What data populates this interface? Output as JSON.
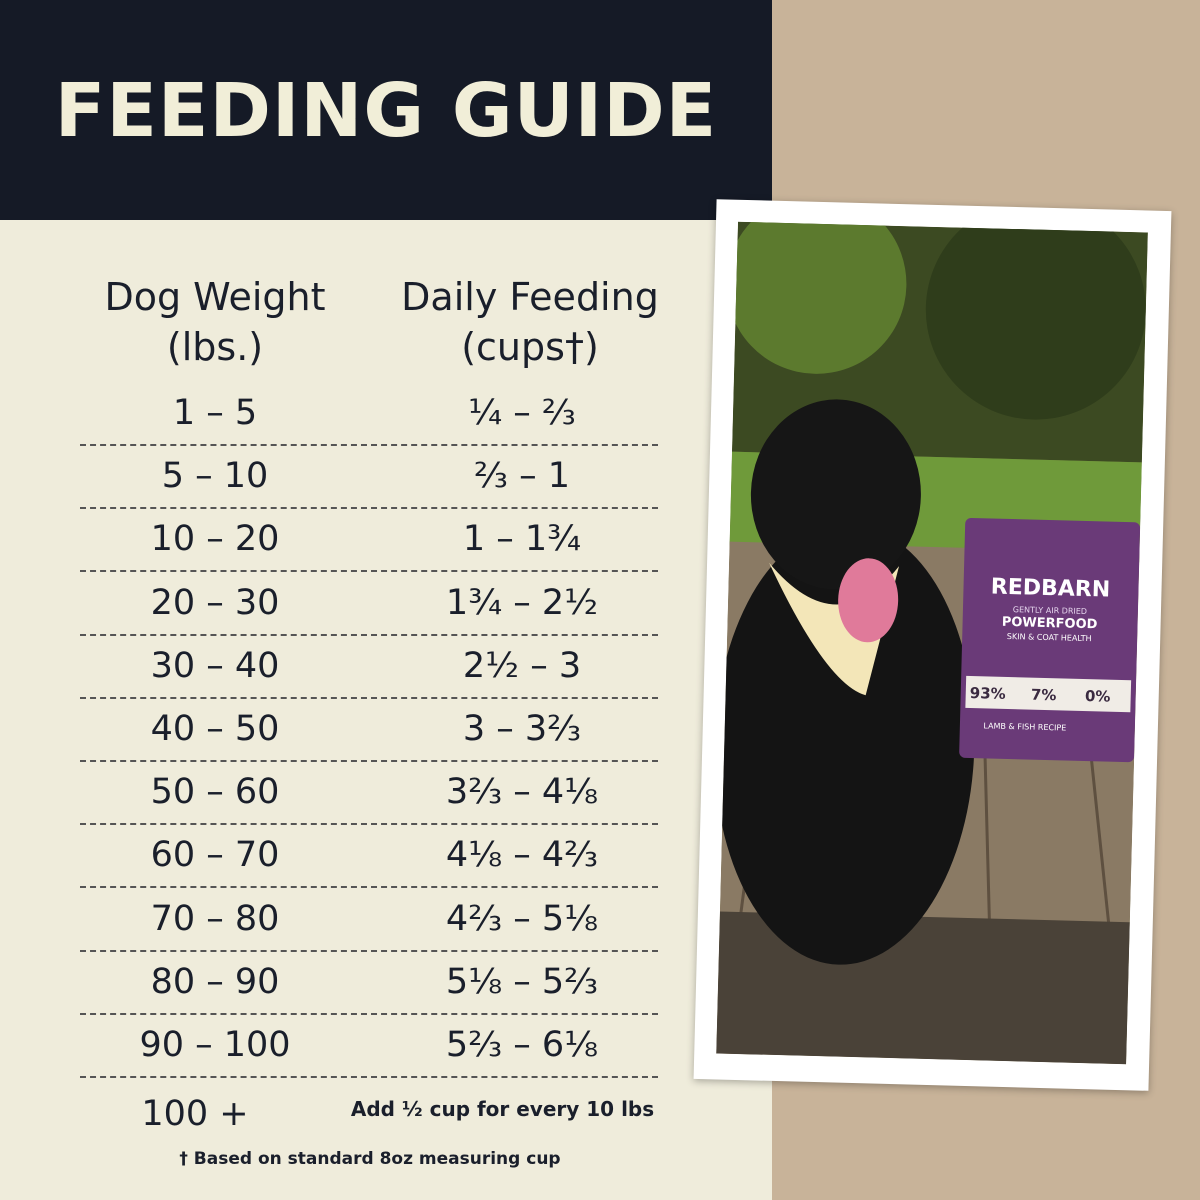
{
  "header": {
    "title": "FEEDING GUIDE"
  },
  "table": {
    "columns": [
      [
        "Dog Weight",
        "(lbs.)"
      ],
      [
        "Daily Feeding",
        "(cups†)"
      ]
    ],
    "rows": [
      [
        "1 – 5",
        "¼ – ⅔"
      ],
      [
        "5 – 10",
        "⅔ – 1"
      ],
      [
        "10 – 20",
        "1 – 1¾"
      ],
      [
        "20 – 30",
        "1¾ – 2½"
      ],
      [
        "30 – 40",
        "2½ – 3"
      ],
      [
        "40 – 50",
        "3 – 3⅔"
      ],
      [
        "50 – 60",
        "3⅔ – 4⅛"
      ],
      [
        "60 – 70",
        "4⅛ – 4⅔"
      ],
      [
        "70 – 80",
        "4⅔ – 5⅛"
      ],
      [
        "80 – 90",
        "5⅛ – 5⅔"
      ],
      [
        "90 – 100",
        "5⅔ – 6⅛"
      ],
      [
        "100 +",
        "Add ½ cup for every 10 lbs"
      ]
    ],
    "footnote": "† Based on standard 8oz measuring cup"
  },
  "product": {
    "brand": "REDBARN",
    "tagline": "GENTLY AIR DRIED",
    "name": "POWERFOOD",
    "benefit": "SKIN & COAT HEALTH",
    "stats": [
      "93%",
      "7%",
      "0%"
    ],
    "recipe": "LAMB & FISH RECIPE"
  }
}
